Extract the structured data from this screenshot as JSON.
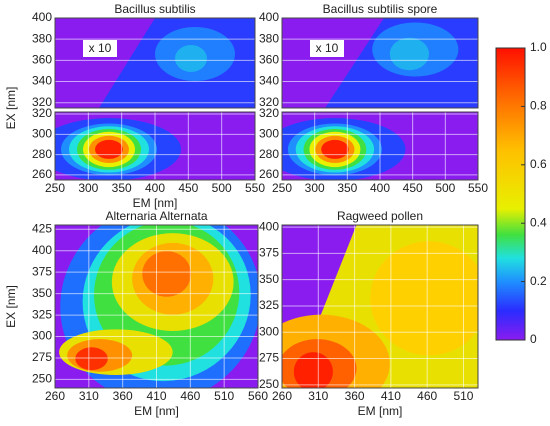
{
  "chart_data": [
    {
      "type": "contour",
      "title": "Bacillus subtilis",
      "ylabel": "EX [nm]",
      "annotation": "x 10",
      "xlim": [
        250,
        550
      ],
      "ylim": [
        315,
        400
      ],
      "yticks": [
        320,
        340,
        360,
        380,
        400
      ]
    },
    {
      "type": "contour",
      "xlabel": "EM [nm]",
      "xlim": [
        250,
        550
      ],
      "xticks": [
        250,
        300,
        350,
        400,
        450,
        500,
        550
      ],
      "ylim": [
        255,
        322
      ],
      "yticks": [
        260,
        280,
        300,
        320
      ]
    },
    {
      "type": "contour",
      "title": "Bacillus subtilis spore",
      "annotation": "x 10",
      "xlim": [
        250,
        550
      ],
      "ylim": [
        315,
        400
      ],
      "yticks": [
        320,
        340,
        360,
        380,
        400
      ]
    },
    {
      "type": "contour",
      "xlim": [
        250,
        550
      ],
      "xticks": [
        250,
        300,
        350,
        400,
        450,
        500,
        550
      ],
      "ylim": [
        255,
        322
      ],
      "yticks": [
        260,
        280,
        300,
        320
      ]
    },
    {
      "type": "contour",
      "title": "Alternaria Alternata",
      "xlabel": "EM [nm]",
      "ylabel": "EX [nm]",
      "xlim": [
        260,
        560
      ],
      "xticks": [
        260,
        310,
        360,
        410,
        460,
        510,
        560
      ],
      "ylim": [
        240,
        430
      ],
      "yticks": [
        250,
        275,
        300,
        325,
        350,
        375,
        400,
        425
      ]
    },
    {
      "type": "contour",
      "title": "Ragweed pollen",
      "xlabel": "EM [nm]",
      "xlim": [
        260,
        530
      ],
      "xticks": [
        260,
        310,
        360,
        410,
        460,
        510
      ],
      "ylim": [
        247,
        402
      ],
      "yticks": [
        250,
        275,
        300,
        325,
        350,
        375,
        400
      ]
    },
    {
      "type": "colorbar",
      "ylim": [
        0,
        1
      ],
      "yticks": [
        0,
        0.2,
        0.4,
        0.6,
        0.8,
        {
          "value": 1,
          "label": "1.0"
        }
      ]
    }
  ]
}
